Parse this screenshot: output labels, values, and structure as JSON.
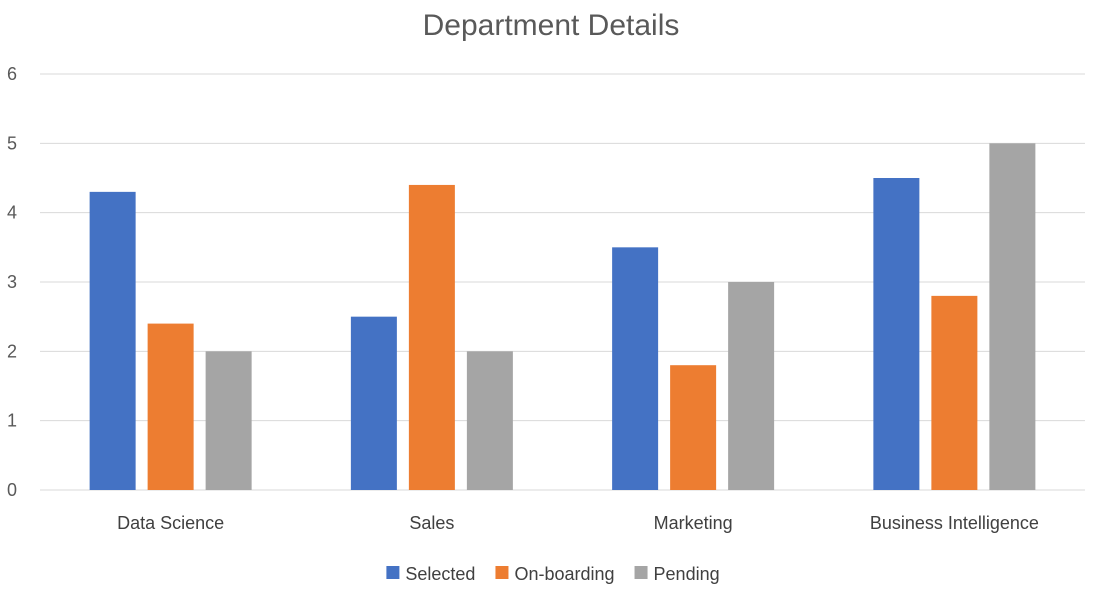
{
  "chart_data": {
    "type": "bar",
    "title": "Department Details",
    "xlabel": "",
    "ylabel": "",
    "categories": [
      "Data Science",
      "Sales",
      "Marketing",
      "Business Intelligence"
    ],
    "series": [
      {
        "name": "Selected",
        "color": "#4472c4",
        "values": [
          4.3,
          2.5,
          3.5,
          4.5
        ]
      },
      {
        "name": "On-boarding",
        "color": "#ed7d31",
        "values": [
          2.4,
          4.4,
          1.8,
          2.8
        ]
      },
      {
        "name": "Pending",
        "color": "#a5a5a5",
        "values": [
          2,
          2,
          3,
          5
        ]
      }
    ],
    "ylim": [
      0,
      6
    ],
    "yticks": [
      0,
      1,
      2,
      3,
      4,
      5,
      6
    ],
    "grid": true,
    "legend": "bottom"
  }
}
